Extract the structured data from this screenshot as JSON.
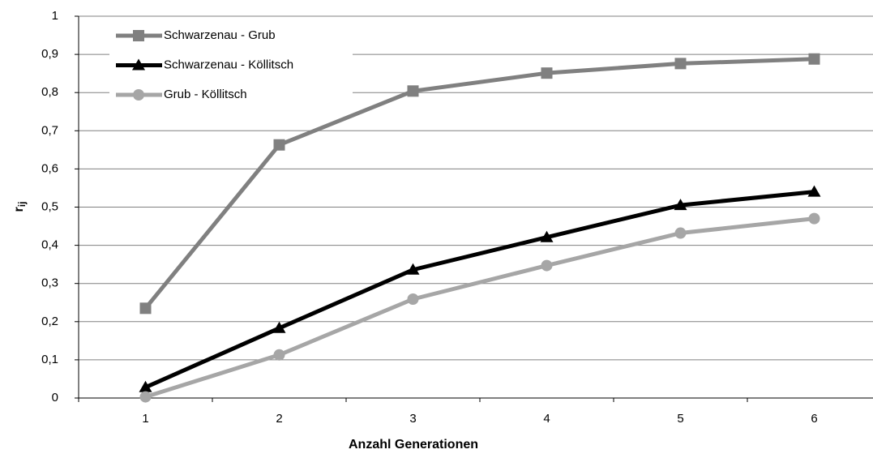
{
  "chart_data": {
    "type": "line",
    "x_label": "Anzahl Generationen",
    "y_label": "r",
    "y_label_sub": "ij",
    "categories": [
      "1",
      "2",
      "3",
      "4",
      "5",
      "6"
    ],
    "series": [
      {
        "name": "Schwarzenau - Grub",
        "color": "#808080",
        "marker": "square",
        "values": [
          0.235,
          0.663,
          0.804,
          0.851,
          0.876,
          0.888
        ]
      },
      {
        "name": "Schwarzenau - Köllitsch",
        "color": "#000000",
        "marker": "triangle",
        "values": [
          0.028,
          0.183,
          0.336,
          0.421,
          0.505,
          0.54
        ]
      },
      {
        "name": "Grub - Köllitsch",
        "color": "#a6a6a6",
        "marker": "circle",
        "values": [
          0.003,
          0.113,
          0.259,
          0.347,
          0.432,
          0.47
        ]
      }
    ],
    "ylim": [
      0,
      1
    ],
    "yticks": [
      0,
      {
        "value": 0.1,
        "label": "0,1"
      },
      {
        "value": 0.2,
        "label": "0,2"
      },
      {
        "value": 0.3,
        "label": "0,3"
      },
      {
        "value": 0.4,
        "label": "0,4"
      },
      {
        "value": 0.5,
        "label": "0,5"
      },
      {
        "value": 0.6,
        "label": "0,6"
      },
      {
        "value": 0.7,
        "label": "0,7"
      },
      {
        "value": 0.8,
        "label": "0,8"
      },
      {
        "value": 0.9,
        "label": "0,9"
      },
      1
    ],
    "grid": true,
    "legend": "top-left"
  }
}
